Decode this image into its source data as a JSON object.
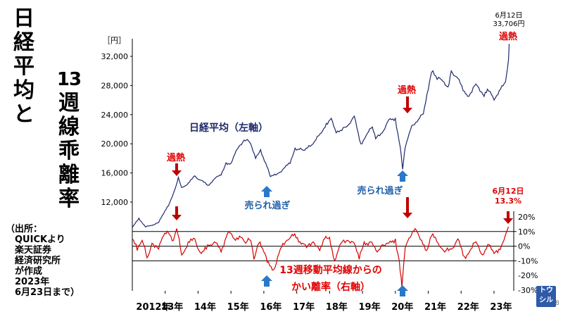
{
  "title_left_chars": [
    "日",
    "経",
    "平",
    "均",
    "と"
  ],
  "title_right_chars": [
    "13",
    "週",
    "線",
    "乖",
    "離",
    "率"
  ],
  "source_note": "（出所：\n　QUICKより\n　楽天証券\n　経済研究所\n　が作成\n　2023年\n　6月23日まで）",
  "brand_logo": "トウシル",
  "page_number": "8",
  "colors": {
    "nikkei_line": "#1f2a6b",
    "deviation_line": "#d40000",
    "annotation_red": "#e00000",
    "annotation_blue": "#1f5fa8",
    "arrow_red": "#c00000",
    "arrow_blue": "#2a78c8"
  },
  "annotations": {
    "top_date": "6月12日",
    "top_value": "33,706円",
    "overheat_top": "過熱",
    "overheat_2013": "過熱",
    "overheat_2020": "過熱",
    "oversold_2016": "売られ過ぎ",
    "oversold_2020": "売られ過ぎ",
    "nikkei_label": "日経平均（左軸）",
    "deviation_label_1": "13週移動平均線からの",
    "deviation_label_2": "かい離率（右軸）",
    "dev_date": "6月12日",
    "dev_value": "13.3%"
  },
  "chart_data": {
    "type": "line",
    "left_axis": {
      "unit": "［円］",
      "ticks": [
        "12,000",
        "16,000",
        "20,000",
        "24,000",
        "28,000",
        "32,000"
      ],
      "tick_values": [
        12000,
        16000,
        20000,
        24000,
        28000,
        32000
      ],
      "range": [
        9000,
        34500
      ]
    },
    "right_axis": {
      "ticks": [
        "20%",
        "10%",
        "0%",
        "-10%",
        "-20%",
        "-30%"
      ],
      "tick_values": [
        20,
        10,
        0,
        -10,
        -20,
        -30
      ],
      "range": [
        -30,
        22
      ]
    },
    "x_ticks": [
      "2012年",
      "13年",
      "14年",
      "15年",
      "16年",
      "17年",
      "18年",
      "19年",
      "20年",
      "21年",
      "22年",
      "23年"
    ],
    "x_range": [
      2012.0,
      2023.6
    ],
    "series": [
      {
        "name": "日経平均（左軸）",
        "axis": "left",
        "x": [
          2012.0,
          2012.2,
          2012.4,
          2012.6,
          2012.8,
          2012.95,
          2013.1,
          2013.3,
          2013.4,
          2013.5,
          2013.7,
          2013.9,
          2014.1,
          2014.3,
          2014.5,
          2014.7,
          2014.85,
          2015.0,
          2015.2,
          2015.4,
          2015.5,
          2015.6,
          2015.75,
          2015.9,
          2016.1,
          2016.2,
          2016.45,
          2016.6,
          2016.8,
          2016.95,
          2017.2,
          2017.5,
          2017.75,
          2017.9,
          2018.05,
          2018.2,
          2018.5,
          2018.75,
          2018.95,
          2019.1,
          2019.3,
          2019.4,
          2019.6,
          2019.8,
          2020.0,
          2020.15,
          2020.22,
          2020.3,
          2020.5,
          2020.7,
          2020.85,
          2021.0,
          2021.1,
          2021.4,
          2021.6,
          2021.7,
          2021.9,
          2022.1,
          2022.2,
          2022.45,
          2022.7,
          2022.8,
          2023.0,
          2023.2,
          2023.35,
          2023.44,
          2023.46
        ],
        "values": [
          8500,
          9800,
          8600,
          8800,
          9200,
          10400,
          11500,
          13800,
          15400,
          14000,
          14600,
          15600,
          15000,
          14300,
          15200,
          15700,
          17400,
          17300,
          19300,
          20500,
          20600,
          20000,
          18000,
          19200,
          16800,
          15500,
          16000,
          16600,
          17300,
          19400,
          19100,
          20000,
          21500,
          22800,
          23500,
          21500,
          22300,
          23800,
          20000,
          21000,
          22300,
          20700,
          21500,
          23300,
          23500,
          19500,
          16500,
          19500,
          22500,
          23300,
          24100,
          27400,
          29800,
          28800,
          27800,
          30000,
          29000,
          27200,
          26500,
          28200,
          26500,
          27500,
          26000,
          27500,
          28500,
          31500,
          33706
        ]
      },
      {
        "name": "13週移動平均線からのかい離率（右軸）",
        "axis": "right",
        "x": [
          2012.0,
          2012.15,
          2012.3,
          2012.45,
          2012.6,
          2012.8,
          2012.95,
          2013.1,
          2013.25,
          2013.35,
          2013.5,
          2013.7,
          2013.9,
          2014.1,
          2014.25,
          2014.5,
          2014.7,
          2014.9,
          2015.1,
          2015.3,
          2015.45,
          2015.6,
          2015.7,
          2015.85,
          2016.0,
          2016.1,
          2016.3,
          2016.5,
          2016.7,
          2016.9,
          2017.1,
          2017.3,
          2017.5,
          2017.7,
          2017.85,
          2018.0,
          2018.15,
          2018.35,
          2018.55,
          2018.75,
          2018.9,
          2019.05,
          2019.25,
          2019.45,
          2019.6,
          2019.8,
          2020.0,
          2020.12,
          2020.2,
          2020.3,
          2020.45,
          2020.6,
          2020.8,
          2020.95,
          2021.1,
          2021.3,
          2021.5,
          2021.7,
          2021.9,
          2022.1,
          2022.25,
          2022.45,
          2022.65,
          2022.85,
          2023.0,
          2023.15,
          2023.3,
          2023.44
        ],
        "values": [
          5,
          -3,
          4,
          -8,
          2,
          -2,
          7,
          9,
          4,
          12,
          -6,
          3,
          5,
          -5,
          -2,
          3,
          -4,
          9,
          5,
          6,
          2,
          4,
          -9,
          2,
          -4,
          -11,
          -16,
          -2,
          4,
          7,
          3,
          -1,
          3,
          -3,
          5,
          6,
          -10,
          2,
          4,
          2,
          -9,
          3,
          3,
          -4,
          1,
          2,
          5,
          -10,
          -28,
          -1,
          6,
          12,
          4,
          -3,
          7,
          2,
          -4,
          -2,
          5,
          -7,
          -4,
          3,
          -6,
          1,
          -5,
          -2,
          4,
          13.3
        ]
      }
    ]
  }
}
